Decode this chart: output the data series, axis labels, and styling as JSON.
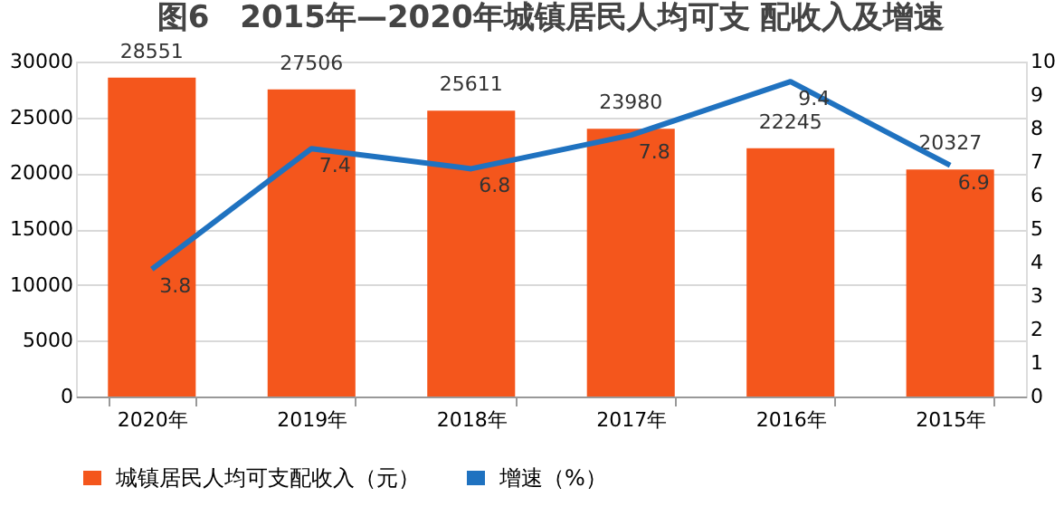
{
  "chart_data": {
    "type": "bar",
    "title": "图6　2015年—2020年城镇居民人均可支 配收入及增速",
    "categories": [
      "2020年",
      "2019年",
      "2018年",
      "2017年",
      "2016年",
      "2015年"
    ],
    "series": [
      {
        "name": "城镇居民人均可支配收入（元）",
        "color": "#f4561c",
        "values": [
          28551,
          27506,
          25611,
          23980,
          22245,
          20327
        ]
      },
      {
        "name": "增速（%）",
        "type": "line",
        "axis": "y2",
        "color": "#1f72c0",
        "marker": "none",
        "line_style": "solid",
        "values": [
          3.8,
          7.4,
          6.8,
          7.8,
          9.4,
          6.9
        ]
      }
    ],
    "ylim": [
      0,
      30000
    ],
    "yticks": [
      0,
      5000,
      10000,
      15000,
      20000,
      25000,
      30000
    ],
    "y2lim": [
      0,
      10
    ],
    "y2ticks": [
      0,
      1,
      2,
      3,
      4,
      5,
      6,
      7,
      8,
      9,
      10
    ],
    "data_labels": true,
    "grid": "y",
    "legend": "bottom"
  }
}
